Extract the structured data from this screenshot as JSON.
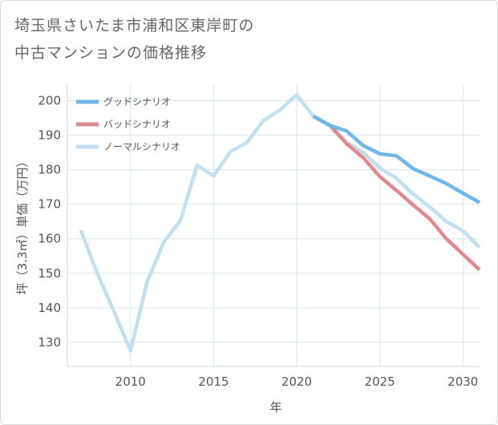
{
  "chart_data": {
    "type": "line",
    "title_lines": [
      "埼玉県さいたま市浦和区東岸町の",
      "中古マンションの価格推移"
    ],
    "xlabel": "年",
    "ylabel": "坪（3.3㎡）単価（万円）",
    "xlim": [
      2006.2,
      2031
    ],
    "ylim": [
      123,
      205
    ],
    "x_ticks": [
      2010,
      2015,
      2020,
      2025,
      2030
    ],
    "y_ticks": [
      130,
      140,
      150,
      160,
      170,
      180,
      190,
      200
    ],
    "grid": true,
    "legend_position": "top-left",
    "series": [
      {
        "name": "グッドシナリオ",
        "color": "#6cb8ea",
        "x": [
          2021,
          2022,
          2023,
          2024,
          2025,
          2026,
          2027,
          2028,
          2029,
          2030,
          2031
        ],
        "y": [
          195.5,
          192.8,
          191.2,
          187,
          184.6,
          184,
          180.3,
          178.2,
          176,
          173.2,
          170.5
        ]
      },
      {
        "name": "バッドシナリオ",
        "color": "#e08a90",
        "x": [
          2021,
          2022,
          2023,
          2024,
          2025,
          2026,
          2027,
          2028,
          2029,
          2030,
          2031
        ],
        "y": [
          195.5,
          192.8,
          187.5,
          183.5,
          178,
          174,
          169.8,
          165.8,
          160,
          155.5,
          151
        ]
      },
      {
        "name": "ノーマルシナリオ",
        "color": "#c0dff0",
        "x": [
          2007,
          2008,
          2009,
          2010,
          2011,
          2012,
          2013,
          2014,
          2015,
          2016,
          2017,
          2018,
          2019,
          2020,
          2021,
          2022,
          2023,
          2024,
          2025,
          2026,
          2027,
          2028,
          2029,
          2030,
          2031
        ],
        "y": [
          162.5,
          150,
          139,
          127.5,
          147.5,
          159,
          165.2,
          181.3,
          178.2,
          185.2,
          187.8,
          194.3,
          197.3,
          201.7,
          195.5,
          192.8,
          188,
          185,
          180.5,
          177.5,
          173,
          169.2,
          165,
          162.3,
          157.5
        ]
      }
    ]
  }
}
